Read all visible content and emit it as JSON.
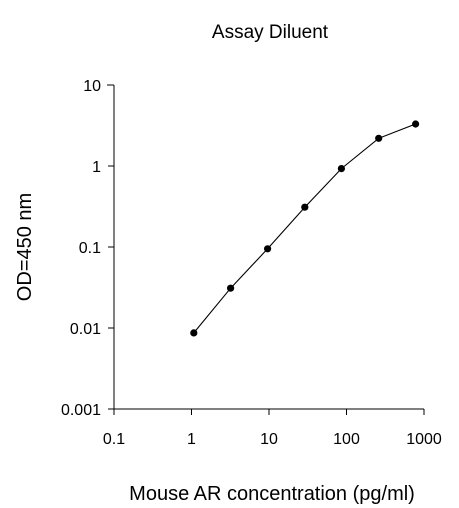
{
  "chart_data": {
    "type": "line",
    "title": "Assay Diluent",
    "xlabel": "Mouse AR concentration (pg/ml)",
    "ylabel": "OD=450 nm",
    "x_scale": "log",
    "y_scale": "log",
    "xlim": [
      0.1,
      1000
    ],
    "ylim": [
      0.001,
      10
    ],
    "x_ticks": [
      "0.1",
      "1",
      "10",
      "100",
      "1000"
    ],
    "y_ticks": [
      "0.001",
      "0.01",
      "0.1",
      "1",
      "10"
    ],
    "grid": false,
    "legend": "none",
    "series": [
      {
        "color": "#000000",
        "marker": "circle",
        "x": [
          1.07,
          3.2,
          9.6,
          29,
          86,
          260,
          780
        ],
        "y": [
          0.0087,
          0.031,
          0.095,
          0.31,
          0.93,
          2.2,
          3.3
        ]
      }
    ]
  }
}
